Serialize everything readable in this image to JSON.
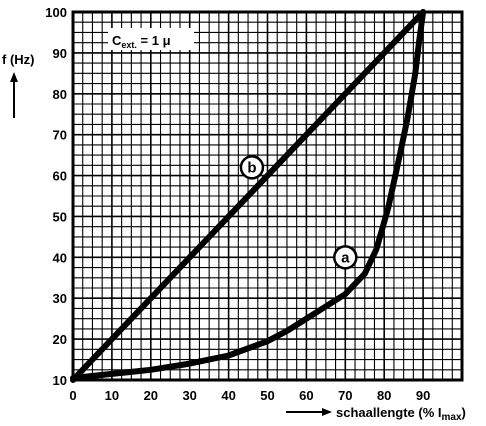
{
  "chart_data": {
    "type": "line",
    "xlabel": "schaallengte (% I",
    "xlabel_sub": "max",
    "xlabel_close": ")",
    "ylabel": "f (Hz)",
    "xlim": [
      0,
      100
    ],
    "ylim": [
      10,
      100
    ],
    "x_ticks": [
      0,
      10,
      20,
      30,
      40,
      50,
      60,
      70,
      80,
      90
    ],
    "y_ticks": [
      10,
      20,
      30,
      40,
      50,
      60,
      70,
      80,
      90,
      100
    ],
    "grid": true,
    "annotation": {
      "text_main": "C",
      "text_sub": "ext.",
      "text_rest": " = 1 μ"
    },
    "series": [
      {
        "name": "b",
        "x": [
          0,
          90
        ],
        "y": [
          10,
          100
        ],
        "label_at": [
          46,
          62
        ]
      },
      {
        "name": "a",
        "x": [
          0,
          10,
          20,
          30,
          40,
          50,
          55,
          60,
          65,
          70,
          75,
          78,
          81,
          84,
          86,
          88,
          89,
          90
        ],
        "y": [
          10.5,
          11.5,
          12.5,
          14,
          16,
          19.5,
          22,
          25,
          28,
          31,
          36,
          42,
          52,
          65,
          74,
          85,
          93,
          100
        ],
        "label_at": [
          70,
          40
        ]
      }
    ]
  }
}
